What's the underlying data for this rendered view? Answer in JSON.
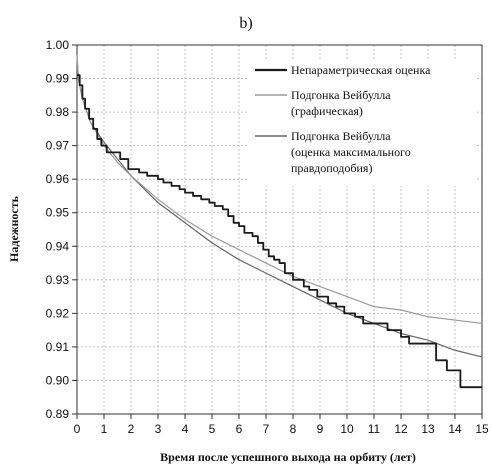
{
  "panel_label": "b)",
  "chart_data": {
    "type": "line",
    "title": "",
    "xlabel": "Время после успешного выхода на орбиту (лет)",
    "ylabel": "Надежность",
    "xlim": [
      0,
      15
    ],
    "ylim": [
      0.89,
      1.0
    ],
    "grid": true,
    "legend_position": "top-right",
    "x_ticks": [
      "0",
      "1",
      "2",
      "3",
      "4",
      "5",
      "6",
      "7",
      "8",
      "9",
      "10",
      "11",
      "12",
      "13",
      "14",
      "15"
    ],
    "y_ticks": [
      "0.89",
      "0.90",
      "0.91",
      "0.92",
      "0.93",
      "0.94",
      "0.95",
      "0.96",
      "0.97",
      "0.98",
      "0.99",
      "1.00"
    ],
    "legend": {
      "items": [
        {
          "lines": [
            "Непараметрическая оценка"
          ]
        },
        {
          "lines": [
            "Подгонка Вейбулла",
            "(графическая)"
          ]
        },
        {
          "lines": [
            "Подгонка Вейбулла",
            "(оценка максимального",
            "правдоподобия)"
          ]
        }
      ]
    },
    "series": [
      {
        "name": "Непараметрическая оценка",
        "color": "#1a1a1a",
        "style": "step",
        "points": [
          [
            0,
            0.991
          ],
          [
            0.1,
            0.988
          ],
          [
            0.2,
            0.984
          ],
          [
            0.3,
            0.981
          ],
          [
            0.45,
            0.978
          ],
          [
            0.6,
            0.975
          ],
          [
            0.75,
            0.972
          ],
          [
            0.9,
            0.97
          ],
          [
            1.1,
            0.968
          ],
          [
            1.4,
            0.968
          ],
          [
            1.6,
            0.966
          ],
          [
            1.8,
            0.966
          ],
          [
            1.9,
            0.963
          ],
          [
            2.3,
            0.962
          ],
          [
            2.6,
            0.961
          ],
          [
            3.0,
            0.96
          ],
          [
            3.2,
            0.959
          ],
          [
            3.5,
            0.958
          ],
          [
            3.8,
            0.957
          ],
          [
            4.0,
            0.956
          ],
          [
            4.3,
            0.955
          ],
          [
            4.6,
            0.954
          ],
          [
            4.9,
            0.953
          ],
          [
            5.1,
            0.952
          ],
          [
            5.4,
            0.951
          ],
          [
            5.6,
            0.949
          ],
          [
            5.8,
            0.947
          ],
          [
            6.0,
            0.946
          ],
          [
            6.2,
            0.944
          ],
          [
            6.5,
            0.943
          ],
          [
            6.7,
            0.941
          ],
          [
            6.9,
            0.939
          ],
          [
            7.1,
            0.937
          ],
          [
            7.3,
            0.936
          ],
          [
            7.5,
            0.935
          ],
          [
            7.7,
            0.932
          ],
          [
            8.0,
            0.93
          ],
          [
            8.4,
            0.928
          ],
          [
            8.6,
            0.927
          ],
          [
            8.9,
            0.925
          ],
          [
            9.3,
            0.923
          ],
          [
            9.6,
            0.922
          ],
          [
            9.9,
            0.92
          ],
          [
            10.3,
            0.919
          ],
          [
            10.6,
            0.917
          ],
          [
            11.2,
            0.917
          ],
          [
            11.5,
            0.915
          ],
          [
            12.0,
            0.913
          ],
          [
            12.3,
            0.911
          ],
          [
            13.0,
            0.911
          ],
          [
            13.3,
            0.906
          ],
          [
            13.6,
            0.906
          ],
          [
            13.7,
            0.903
          ],
          [
            14.0,
            0.903
          ],
          [
            14.2,
            0.898
          ],
          [
            15.0,
            0.898
          ]
        ]
      },
      {
        "name": "Подгонка Вейбулла (графическая)",
        "color": "#9a9a9a",
        "style": "curve",
        "points": [
          [
            0,
            0.997
          ],
          [
            0.05,
            0.99
          ],
          [
            0.2,
            0.984
          ],
          [
            0.5,
            0.977
          ],
          [
            1,
            0.97
          ],
          [
            1.5,
            0.965
          ],
          [
            2,
            0.961
          ],
          [
            3,
            0.954
          ],
          [
            4,
            0.948
          ],
          [
            5,
            0.943
          ],
          [
            6,
            0.939
          ],
          [
            7,
            0.935
          ],
          [
            8,
            0.931
          ],
          [
            9,
            0.928
          ],
          [
            10,
            0.925
          ],
          [
            11,
            0.922
          ],
          [
            12,
            0.921
          ],
          [
            13,
            0.919
          ],
          [
            14,
            0.918
          ],
          [
            15,
            0.917
          ]
        ]
      },
      {
        "name": "Подгонка Вейбулла (оценка максимального правдоподобия)",
        "color": "#666666",
        "style": "curve",
        "points": [
          [
            0,
            0.997
          ],
          [
            0.05,
            0.99
          ],
          [
            0.2,
            0.984
          ],
          [
            0.5,
            0.977
          ],
          [
            1,
            0.971
          ],
          [
            1.5,
            0.966
          ],
          [
            2,
            0.961
          ],
          [
            3,
            0.953
          ],
          [
            4,
            0.947
          ],
          [
            5,
            0.941
          ],
          [
            6,
            0.936
          ],
          [
            7,
            0.932
          ],
          [
            8,
            0.928
          ],
          [
            9,
            0.924
          ],
          [
            10,
            0.92
          ],
          [
            11,
            0.917
          ],
          [
            12,
            0.914
          ],
          [
            13,
            0.912
          ],
          [
            14,
            0.909
          ],
          [
            15,
            0.907
          ]
        ]
      }
    ]
  }
}
